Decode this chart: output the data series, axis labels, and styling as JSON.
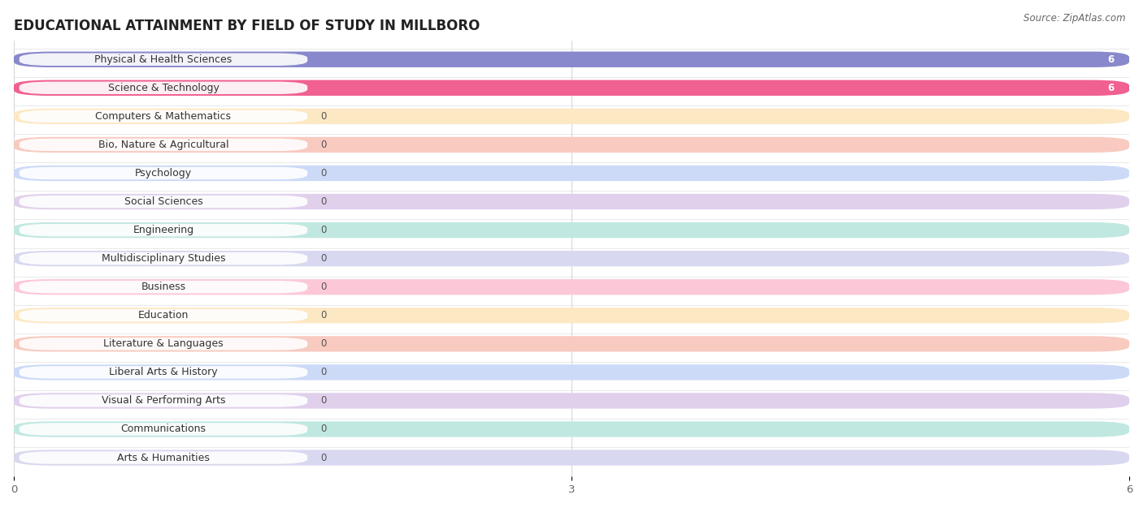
{
  "title": "EDUCATIONAL ATTAINMENT BY FIELD OF STUDY IN MILLBORO",
  "source": "Source: ZipAtlas.com",
  "categories": [
    "Physical & Health Sciences",
    "Science & Technology",
    "Computers & Mathematics",
    "Bio, Nature & Agricultural",
    "Psychology",
    "Social Sciences",
    "Engineering",
    "Multidisciplinary Studies",
    "Business",
    "Education",
    "Literature & Languages",
    "Liberal Arts & History",
    "Visual & Performing Arts",
    "Communications",
    "Arts & Humanities"
  ],
  "values": [
    6,
    6,
    0,
    0,
    0,
    0,
    0,
    0,
    0,
    0,
    0,
    0,
    0,
    0,
    0
  ],
  "bar_colors": [
    "#8888cc",
    "#f06090",
    "#f5c98a",
    "#f0a898",
    "#90b0e8",
    "#c8a8d8",
    "#70c8b8",
    "#a8a8e0",
    "#f08cac",
    "#f5c98a",
    "#f0a898",
    "#90b0e8",
    "#c8a8d8",
    "#70c8b8",
    "#a8a8e0"
  ],
  "background_bar_colors": [
    "#d8d8f0",
    "#fcc8d8",
    "#fde8c4",
    "#f8cac0",
    "#ccdaf8",
    "#e0d0ec",
    "#c0e8e0",
    "#d8d8f0",
    "#fcc8d8",
    "#fde8c4",
    "#f8cac0",
    "#ccdaf8",
    "#e0d0ec",
    "#c0e8e0",
    "#d8d8f0"
  ],
  "xlim": [
    0,
    6
  ],
  "xticks": [
    0,
    3,
    6
  ],
  "title_fontsize": 12,
  "label_fontsize": 9,
  "value_fontsize": 8.5,
  "background_color": "#ffffff"
}
